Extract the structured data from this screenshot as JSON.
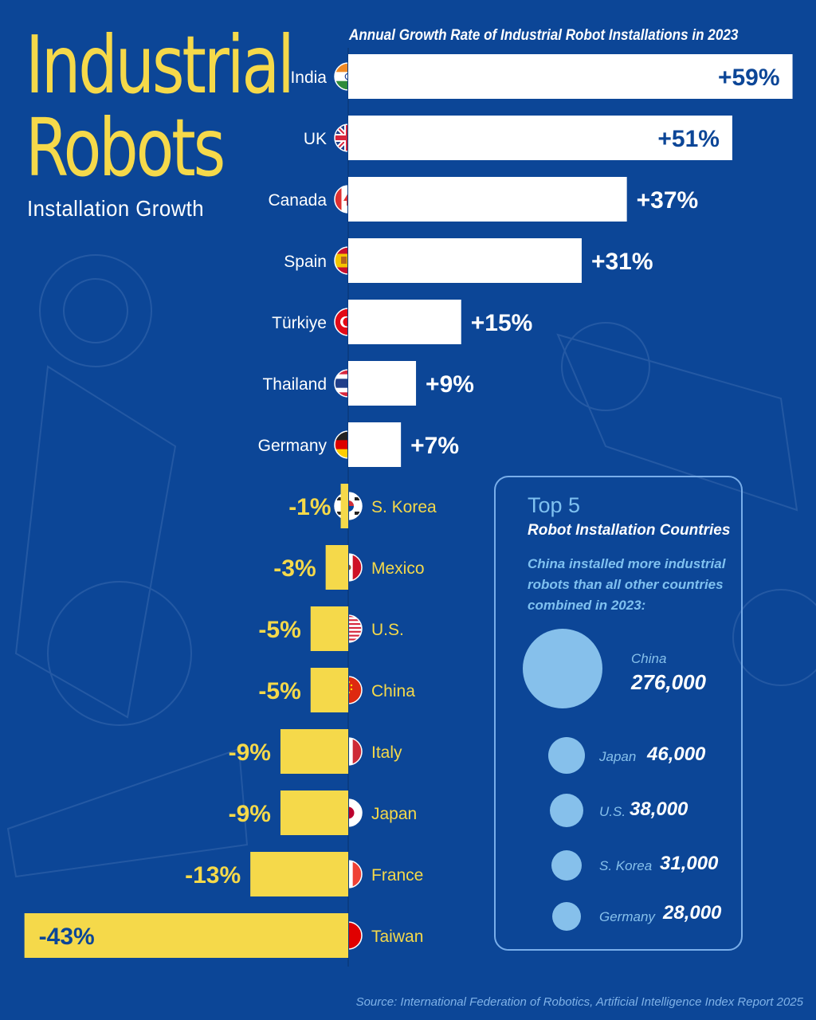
{
  "header": {
    "title_line1": "Industrial",
    "title_line2": "Robots",
    "subtitle": "Installation Growth"
  },
  "chart_data": {
    "type": "bar",
    "orientation": "horizontal",
    "title": "Annual Growth Rate of Industrial Robot Installations in 2023",
    "unit": "%",
    "categories": [
      "India",
      "UK",
      "Canada",
      "Spain",
      "Türkiye",
      "Thailand",
      "Germany",
      "S. Korea",
      "Mexico",
      "U.S.",
      "China",
      "Italy",
      "Japan",
      "France",
      "Taiwan"
    ],
    "values": [
      59,
      51,
      37,
      31,
      15,
      9,
      7,
      -1,
      -3,
      -5,
      -5,
      -9,
      -9,
      -13,
      -43
    ],
    "labels": [
      "+59%",
      "+51%",
      "+37%",
      "+31%",
      "+15%",
      "+9%",
      "+7%",
      "-1%",
      "-3%",
      "-5%",
      "-5%",
      "-9%",
      "-9%",
      "-13%",
      "-43%"
    ],
    "flags": [
      "india-flag",
      "uk-flag",
      "canada-flag",
      "spain-flag",
      "turkiye-flag",
      "thailand-flag",
      "germany-flag",
      "south-korea-flag",
      "mexico-flag",
      "us-flag",
      "china-flag",
      "italy-flag",
      "japan-flag",
      "france-flag",
      "taiwan-flag"
    ],
    "xlim": [
      -43,
      59
    ],
    "positive_color": "#ffffff",
    "negative_color": "#f5d94a",
    "positive_label_color": "#0c4697",
    "negative_label_color": "#f5d94a"
  },
  "top5": {
    "heading": "Top 5",
    "subheading": "Robot Installation Countries",
    "note": "China installed more industrial robots than all other countries combined in 2023:",
    "items": [
      {
        "country": "China",
        "value": "276,000",
        "count": 276000
      },
      {
        "country": "Japan",
        "value": "46,000",
        "count": 46000
      },
      {
        "country": "U.S.",
        "value": "38,000",
        "count": 38000
      },
      {
        "country": "S. Korea",
        "value": "31,000",
        "count": 31000
      },
      {
        "country": "Germany",
        "value": "28,000",
        "count": 28000
      }
    ]
  },
  "source": "Source: International Federation of Robotics, Artificial Intelligence Index Report 2025",
  "colors": {
    "background": "#0c4697",
    "accent_yellow": "#f5d94a",
    "bubble_blue": "#86c0eb"
  }
}
